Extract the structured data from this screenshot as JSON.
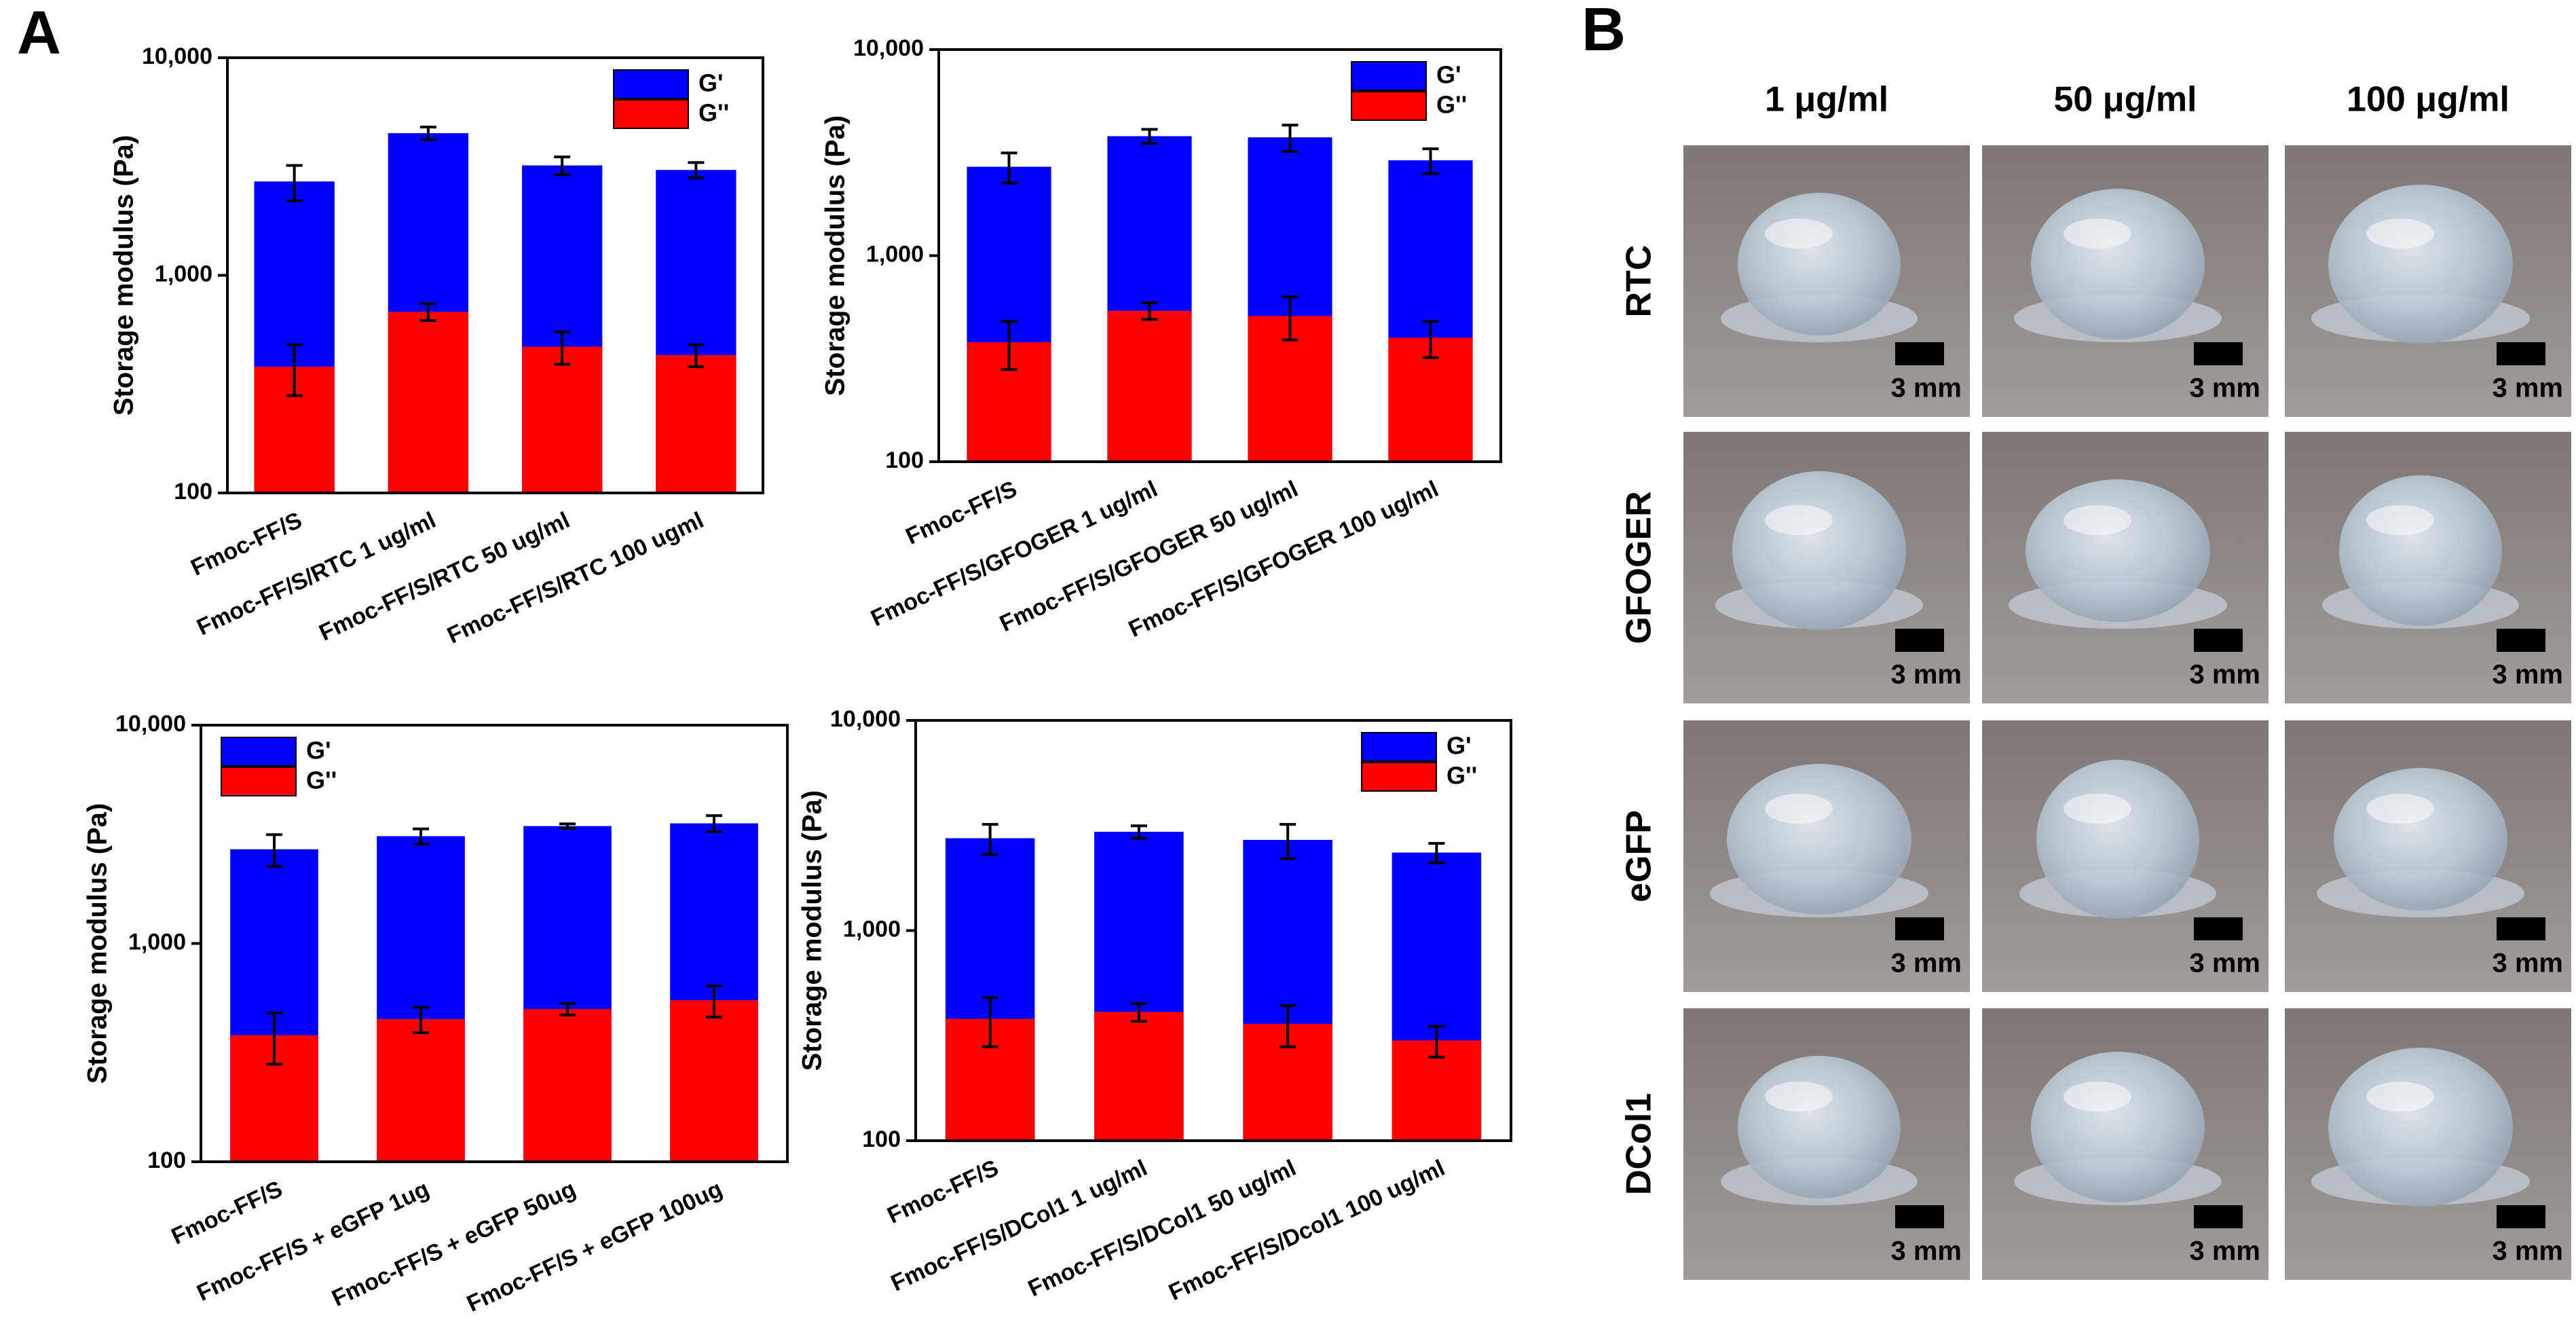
{
  "panel_a_label": "A",
  "chart_data": [
    {
      "type": "bar",
      "barmode": "overlay",
      "ylabel": "Storage modulus (Pa)",
      "yscale": "log",
      "ylim": [
        100,
        10000
      ],
      "yticks": [
        100,
        {
          "value": 1000,
          "label": "1,000"
        },
        {
          "value": 10000,
          "label": "10,000"
        }
      ],
      "legend": "upper right",
      "categories": [
        "Fmoc-FF/S",
        "Fmoc-FF/S/RTC 1 ug/ml",
        "Fmoc-FF/S/RTC 50 ug/ml",
        "Fmoc-FF/S/RTC 100 ugml"
      ],
      "series": [
        {
          "name": "G'",
          "color": "#0000ff",
          "values": [
            2700,
            4500,
            3200,
            3050
          ],
          "errors": [
            500,
            300,
            300,
            250
          ]
        },
        {
          "name": "G''",
          "color": "#ff0000",
          "values": [
            380,
            680,
            470,
            430
          ],
          "errors": [
            100,
            60,
            80,
            50
          ]
        }
      ]
    },
    {
      "type": "bar",
      "barmode": "overlay",
      "ylabel": "Storage modulus (Pa)",
      "yscale": "log",
      "ylim": [
        100,
        10000
      ],
      "yticks": [
        100,
        {
          "value": 1000,
          "label": "1,000"
        },
        {
          "value": 10000,
          "label": "10,000"
        }
      ],
      "legend": "upper right",
      "categories": [
        "Fmoc-FF/S",
        "Fmoc-FF/S/GFOGER 1 ug/ml",
        "Fmoc-FF/S/GFOGER 50 ug/ml",
        "Fmoc-FF/S/GFOGER 100 ug/ml"
      ],
      "series": [
        {
          "name": "G'",
          "color": "#0000ff",
          "values": [
            2700,
            3800,
            3750,
            2900
          ],
          "errors": [
            450,
            300,
            550,
            400
          ]
        },
        {
          "name": "G''",
          "color": "#ff0000",
          "values": [
            380,
            540,
            510,
            400
          ],
          "errors": [
            100,
            50,
            120,
            80
          ]
        }
      ]
    },
    {
      "type": "bar",
      "barmode": "overlay",
      "ylabel": "Storage modulus (Pa)",
      "yscale": "log",
      "ylim": [
        100,
        10000
      ],
      "yticks": [
        100,
        {
          "value": 1000,
          "label": "1,000"
        },
        {
          "value": 10000,
          "label": "10,000"
        }
      ],
      "legend": "upper left",
      "categories": [
        "Fmoc-FF/S",
        "Fmoc-FF/S + eGFP 1ug",
        "Fmoc-FF/S + eGFP 50ug",
        "Fmoc-FF/S + eGFP 100ug"
      ],
      "series": [
        {
          "name": "G'",
          "color": "#0000ff",
          "values": [
            2700,
            3100,
            3450,
            3550
          ],
          "errors": [
            450,
            250,
            80,
            300
          ]
        },
        {
          "name": "G''",
          "color": "#ff0000",
          "values": [
            380,
            450,
            500,
            550
          ],
          "errors": [
            100,
            60,
            30,
            90
          ]
        }
      ]
    },
    {
      "type": "bar",
      "barmode": "overlay",
      "ylabel": "Storage modulus (Pa)",
      "yscale": "log",
      "ylim": [
        100,
        10000
      ],
      "yticks": [
        100,
        {
          "value": 1000,
          "label": "1,000"
        },
        {
          "value": 10000,
          "label": "10,000"
        }
      ],
      "legend": "upper right",
      "categories": [
        "Fmoc-FF/S",
        "Fmoc-FF/S/DCol1 1 ug/ml",
        "Fmoc-FF/S/DCol1 50 ug/ml",
        "Fmoc-FF/S/Dcol1 100 ug/ml"
      ],
      "series": [
        {
          "name": "G'",
          "color": "#0000ff",
          "values": [
            2750,
            2950,
            2700,
            2350
          ],
          "errors": [
            450,
            200,
            500,
            250
          ]
        },
        {
          "name": "G''",
          "color": "#ff0000",
          "values": [
            380,
            410,
            360,
            300
          ],
          "errors": [
            100,
            40,
            80,
            50
          ]
        }
      ]
    }
  ],
  "panel_b": {
    "label": "B",
    "columns": [
      "1 μg/ml",
      "50 μg/ml",
      "100 μg/ml"
    ],
    "rows": [
      "RTC",
      "GFOGER",
      "eGFP",
      "DCol1"
    ],
    "scale_bar": "3 mm"
  }
}
